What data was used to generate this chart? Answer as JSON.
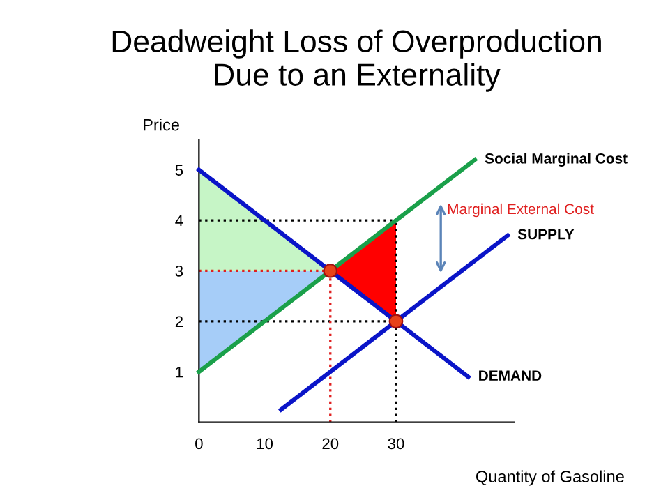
{
  "chart_data": {
    "type": "line",
    "title": "Deadweight Loss of Overproduction\nDue to an Externality",
    "xlabel": "Quantity of Gasoline",
    "ylabel": "Price",
    "xlim": [
      0,
      48
    ],
    "ylim": [
      0,
      5.6
    ],
    "xticks": [
      0,
      10,
      20,
      30
    ],
    "yticks": [
      1,
      2,
      3,
      4,
      5
    ],
    "grid": false,
    "legend": false,
    "marker": "none",
    "series": [
      {
        "type": "area",
        "color": "#c6f5c6",
        "x": [
          0,
          20,
          0
        ],
        "values": [
          5,
          3,
          3
        ]
      },
      {
        "type": "area",
        "color": "#a6cdf8",
        "x": [
          0,
          20,
          0
        ],
        "values": [
          1,
          3,
          3
        ]
      },
      {
        "type": "area",
        "color": "#ff0000",
        "x": [
          20,
          30,
          30
        ],
        "values": [
          3,
          4,
          2
        ]
      },
      {
        "color": "#000000",
        "line_style": "dotted",
        "x": [
          0,
          30
        ],
        "values": [
          4,
          4
        ]
      },
      {
        "color": "#e02020",
        "line_style": "dotted",
        "x": [
          0,
          20
        ],
        "values": [
          3,
          3
        ]
      },
      {
        "color": "#000000",
        "line_style": "dotted",
        "x": [
          0,
          30
        ],
        "values": [
          2,
          2
        ]
      },
      {
        "color": "#e02020",
        "line_style": "dotted",
        "x": [
          20,
          20
        ],
        "values": [
          0,
          3
        ]
      },
      {
        "color": "#000000",
        "line_style": "dotted",
        "x": [
          30,
          30
        ],
        "values": [
          0,
          4
        ]
      },
      {
        "name": "Social Marginal Cost",
        "color": "#1aa04a",
        "x": [
          0,
          42
        ],
        "values": [
          1,
          5.2
        ]
      },
      {
        "name": "SUPPLY",
        "color": "#0a14c8",
        "x": [
          12.5,
          47
        ],
        "values": [
          0.25,
          3.7
        ]
      },
      {
        "name": "DEMAND",
        "color": "#0a14c8",
        "x": [
          0,
          41
        ],
        "values": [
          5,
          0.9
        ]
      },
      {
        "type": "scatter",
        "marker": "circle",
        "color": "#e8431a",
        "x": [
          20,
          30
        ],
        "values": [
          3,
          2
        ]
      }
    ],
    "annotations": [
      "Marginal External Cost"
    ]
  }
}
